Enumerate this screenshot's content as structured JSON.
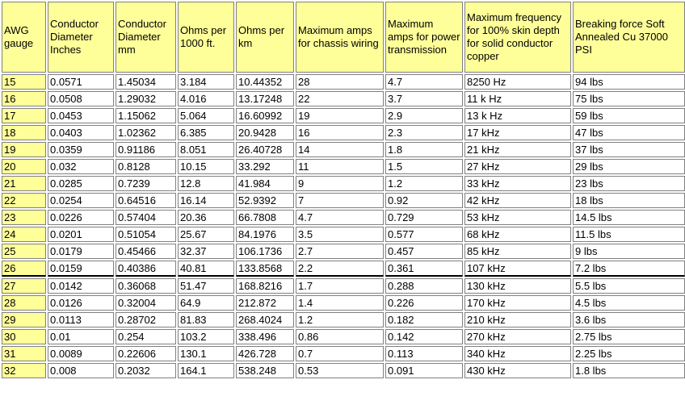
{
  "table": {
    "headers": [
      "AWG gauge",
      "Conductor Diameter Inches",
      "Conductor Diameter mm",
      "Ohms per 1000 ft.",
      "Ohms per km",
      "Maximum amps for chassis wiring",
      "Maximum amps for power transmission",
      "Maximum frequency for 100% skin depth for solid conductor copper",
      "Breaking force Soft Annealed Cu 37000 PSI"
    ],
    "rows": [
      [
        "15",
        "0.0571",
        "1.45034",
        "3.184",
        "10.44352",
        "28",
        "4.7",
        "8250 Hz",
        "94 lbs"
      ],
      [
        "16",
        "0.0508",
        "1.29032",
        "4.016",
        "13.17248",
        "22",
        "3.7",
        "11 k Hz",
        "75 lbs"
      ],
      [
        "17",
        "0.0453",
        "1.15062",
        "5.064",
        "16.60992",
        "19",
        "2.9",
        "13 k Hz",
        "59 lbs"
      ],
      [
        "18",
        "0.0403",
        "1.02362",
        "6.385",
        "20.9428",
        "16",
        "2.3",
        "17 kHz",
        "47 lbs"
      ],
      [
        "19",
        "0.0359",
        "0.91186",
        "8.051",
        "26.40728",
        "14",
        "1.8",
        "21 kHz",
        "37 lbs"
      ],
      [
        "20",
        "0.032",
        "0.8128",
        "10.15",
        "33.292",
        "11",
        "1.5",
        "27 kHz",
        "29 lbs"
      ],
      [
        "21",
        "0.0285",
        "0.7239",
        "12.8",
        "41.984",
        "9",
        "1.2",
        "33 kHz",
        "23 lbs"
      ],
      [
        "22",
        "0.0254",
        "0.64516",
        "16.14",
        "52.9392",
        "7",
        "0.92",
        "42 kHz",
        "18 lbs"
      ],
      [
        "23",
        "0.0226",
        "0.57404",
        "20.36",
        "66.7808",
        "4.7",
        "0.729",
        "53 kHz",
        "14.5 lbs"
      ],
      [
        "24",
        "0.0201",
        "0.51054",
        "25.67",
        "84.1976",
        "3.5",
        "0.577",
        "68 kHz",
        "11.5 lbs"
      ],
      [
        "25",
        "0.0179",
        "0.45466",
        "32.37",
        "106.1736",
        "2.7",
        "0.457",
        "85 kHz",
        "9 lbs"
      ],
      [
        "26",
        "0.0159",
        "0.40386",
        "40.81",
        "133.8568",
        "2.2",
        "0.361",
        "107 kHz",
        "7.2 lbs"
      ],
      [
        "27",
        "0.0142",
        "0.36068",
        "51.47",
        "168.8216",
        "1.7",
        "0.288",
        "130 kHz",
        "5.5 lbs"
      ],
      [
        "28",
        "0.0126",
        "0.32004",
        "64.9",
        "212.872",
        "1.4",
        "0.226",
        "170 kHz",
        "4.5 lbs"
      ],
      [
        "29",
        "0.0113",
        "0.28702",
        "81.83",
        "268.4024",
        "1.2",
        "0.182",
        "210 kHz",
        "3.6 lbs"
      ],
      [
        "30",
        "0.01",
        "0.254",
        "103.2",
        "338.496",
        "0.86",
        "0.142",
        "270 kHz",
        "2.75 lbs"
      ],
      [
        "31",
        "0.0089",
        "0.22606",
        "130.1",
        "426.728",
        "0.7",
        "0.113",
        "340 kHz",
        "2.25 lbs"
      ],
      [
        "32",
        "0.008",
        "0.2032",
        "164.1",
        "538.248",
        "0.53",
        "0.091",
        "430 kHz",
        "1.8 lbs"
      ]
    ]
  }
}
